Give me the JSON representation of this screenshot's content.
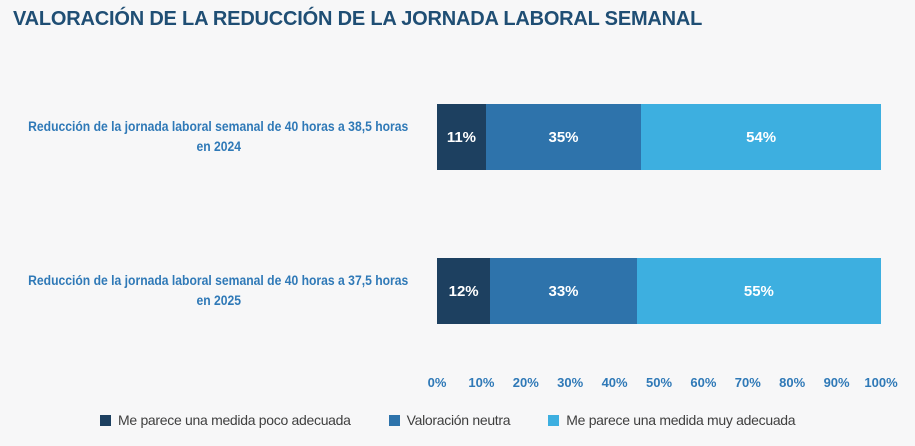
{
  "title": "VALORACIÓN DE LA REDUCCIÓN DE LA JORNADA LABORAL SEMANAL",
  "colors": {
    "background": "#f7f7f8",
    "title": "#1f4e74",
    "category_label": "#2f79b7",
    "axis_label": "#2f79b7",
    "legend_text": "#3f3f3f",
    "bar_value_text": "#ffffff"
  },
  "chart_data": {
    "type": "bar",
    "orientation": "horizontal-stacked",
    "title": "VALORACIÓN DE LA REDUCCIÓN DE LA JORNADA LABORAL SEMANAL",
    "categories": [
      "Reducción de la jornada laboral semanal de 40 horas a 38,5 horas en 2024",
      "Reducción de la jornada laboral semanal de 40 horas a 37,5 horas en 2025"
    ],
    "label_lines": [
      [
        "Reducción de la jornada laboral semanal de 40 horas a 38,5 horas",
        "en 2024"
      ],
      [
        "Reducción de la jornada laboral semanal de 40 horas a 37,5 horas",
        "en 2025"
      ]
    ],
    "series": [
      {
        "name": "Me parece una medida poco adecuada",
        "color": "#1d4060",
        "values": [
          11,
          12
        ]
      },
      {
        "name": "Valoración neutra",
        "color": "#2e73ab",
        "values": [
          35,
          33
        ]
      },
      {
        "name": "Me parece una medida muy adecuada",
        "color": "#3dafe0",
        "values": [
          54,
          55
        ]
      }
    ],
    "value_suffix": "%",
    "x_ticks": [
      "0%",
      "10%",
      "20%",
      "30%",
      "40%",
      "50%",
      "60%",
      "70%",
      "80%",
      "90%",
      "100%"
    ],
    "xlim": [
      0,
      100
    ],
    "grid": false,
    "legend_position": "bottom"
  }
}
